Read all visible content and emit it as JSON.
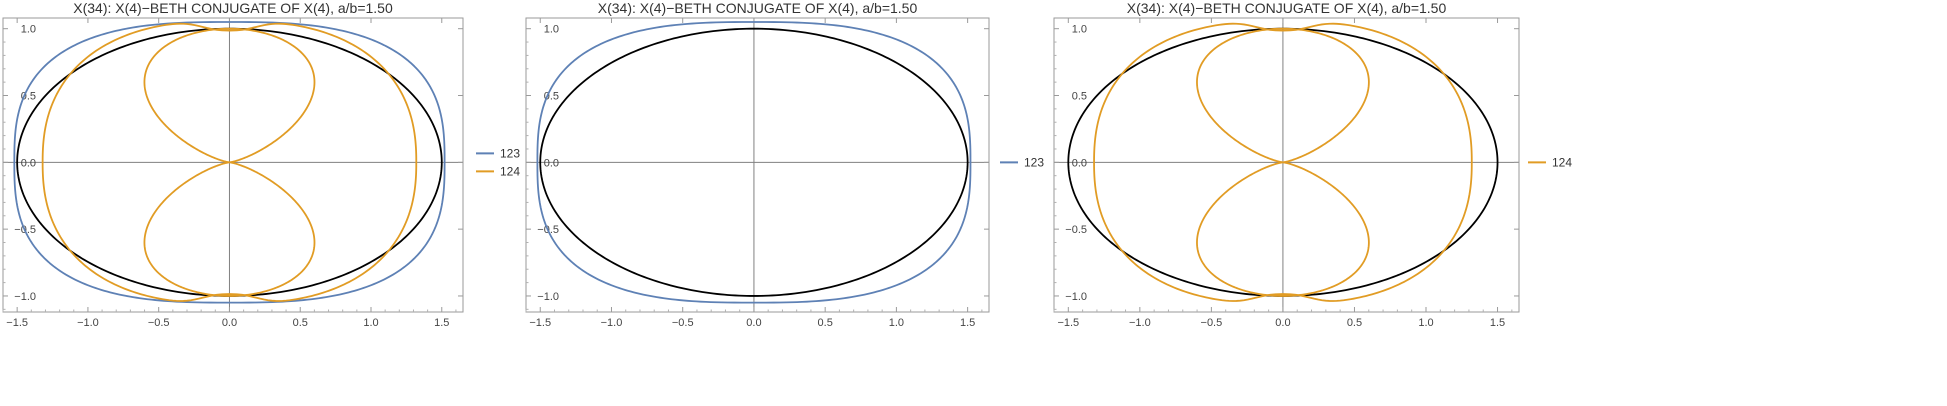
{
  "chart_data": [
    {
      "type": "line",
      "title": "X(34): X(4)−BETH CONJUGATE OF X(4), a/b=1.50",
      "xlim": [
        -1.6,
        1.65
      ],
      "ylim": [
        -1.12,
        1.08
      ],
      "xticks": [
        -1.5,
        -1.0,
        -0.5,
        0.0,
        0.5,
        1.0,
        1.5
      ],
      "xtick_labels": [
        "−1.5",
        "−1.0",
        "−0.5",
        "0.0",
        "0.5",
        "1.0",
        "1.5"
      ],
      "yticks": [
        -1.0,
        -0.5,
        0.0,
        0.5,
        1.0
      ],
      "ytick_labels": [
        "−1.0",
        "−0.5",
        "0.0",
        "0.5",
        "1.0"
      ],
      "legend_position": "right",
      "colors": {
        "123": "#5e81b5",
        "124": "#e19c24",
        "ellipse": "#000000",
        "axis": "#808080"
      },
      "series": [
        {
          "name": "",
          "shape": "ellipse",
          "a": 1.5,
          "b": 1.0
        },
        {
          "name": "123",
          "shape": "superellipse",
          "a": 1.52,
          "b": 1.05,
          "exponent": 2.8
        },
        {
          "name": "124",
          "shape": "ring",
          "a": 1.32,
          "b": 1.06
        },
        {
          "name": "124",
          "shape": "lobes",
          "x_max": 0.43,
          "y_max": 1.0
        }
      ]
    },
    {
      "type": "line",
      "title": "X(34): X(4)−BETH CONJUGATE OF X(4), a/b=1.50",
      "xlim": [
        -1.6,
        1.65
      ],
      "ylim": [
        -1.12,
        1.08
      ],
      "xticks": [
        -1.5,
        -1.0,
        -0.5,
        0.0,
        0.5,
        1.0,
        1.5
      ],
      "xtick_labels": [
        "−1.5",
        "−1.0",
        "−0.5",
        "0.0",
        "0.5",
        "1.0",
        "1.5"
      ],
      "yticks": [
        -1.0,
        -0.5,
        0.0,
        0.5,
        1.0
      ],
      "ytick_labels": [
        "−1.0",
        "−0.5",
        "0.0",
        "0.5",
        "1.0"
      ],
      "legend_position": "right",
      "colors": {
        "123": "#5e81b5",
        "ellipse": "#000000",
        "axis": "#808080"
      },
      "series": [
        {
          "name": "",
          "shape": "ellipse",
          "a": 1.5,
          "b": 1.0
        },
        {
          "name": "123",
          "shape": "superellipse",
          "a": 1.52,
          "b": 1.05,
          "exponent": 2.8
        }
      ]
    },
    {
      "type": "line",
      "title": "X(34): X(4)−BETH CONJUGATE OF X(4), a/b=1.50",
      "xlim": [
        -1.6,
        1.65
      ],
      "ylim": [
        -1.12,
        1.08
      ],
      "xticks": [
        -1.5,
        -1.0,
        -0.5,
        0.0,
        0.5,
        1.0,
        1.5
      ],
      "xtick_labels": [
        "−1.5",
        "−1.0",
        "−0.5",
        "0.0",
        "0.5",
        "1.0",
        "1.5"
      ],
      "yticks": [
        -1.0,
        -0.5,
        0.0,
        0.5,
        1.0
      ],
      "ytick_labels": [
        "−1.0",
        "−0.5",
        "0.0",
        "0.5",
        "1.0"
      ],
      "legend_position": "right",
      "colors": {
        "124": "#e19c24",
        "ellipse": "#000000",
        "axis": "#808080"
      },
      "series": [
        {
          "name": "",
          "shape": "ellipse",
          "a": 1.5,
          "b": 1.0
        },
        {
          "name": "124",
          "shape": "ring",
          "a": 1.32,
          "b": 1.06
        },
        {
          "name": "124",
          "shape": "lobes",
          "x_max": 0.43,
          "y_max": 1.0
        }
      ]
    }
  ]
}
